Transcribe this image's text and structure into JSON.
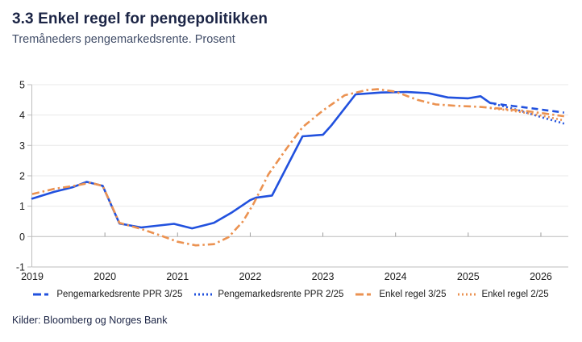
{
  "header": {
    "title": "3.3 Enkel regel for pengepolitikken",
    "subtitle": "Tremåneders pengemarkedsrente. Prosent"
  },
  "source": "Kilder: Bloomberg og Norges Bank",
  "colors": {
    "blue": "#2151DE",
    "orange": "#EB9251",
    "grid": "#E8E8E8",
    "zero_line": "#BDBDBD",
    "axis": "#BDBDBD",
    "tick": "#9E9E9E",
    "tick_label": "#1C1C1C",
    "title": "#1B2445",
    "subtitle": "#414D68"
  },
  "legend": {
    "items": [
      {
        "label": "Pengemarkedsrente PPR 3/25",
        "color": "blue",
        "style": "dashed"
      },
      {
        "label": "Pengemarkedsrente PPR 2/25",
        "color": "blue",
        "style": "dotted"
      },
      {
        "label": "Enkel regel 3/25",
        "color": "orange",
        "style": "dashed"
      },
      {
        "label": "Enkel regel 2/25",
        "color": "orange",
        "style": "dotted"
      }
    ]
  },
  "chart_data": {
    "type": "line",
    "title": "3.3 Enkel regel for pengepolitikken",
    "subtitle": "Tremåneders pengemarkedsrente. Prosent",
    "xlabel": "",
    "ylabel": "",
    "xlim": [
      2019,
      2026.4
    ],
    "ylim": [
      -1,
      5
    ],
    "xticks": [
      2019,
      2020,
      2021,
      2022,
      2023,
      2024,
      2025,
      2026
    ],
    "yticks": [
      5,
      4,
      3,
      2,
      1,
      0,
      -1
    ],
    "grid": true,
    "legend_position": "bottom",
    "series": [
      {
        "name": "Pengemarkedsrente PPR 3/25",
        "color": "#2151DE",
        "line_style": "solid-then-dashed",
        "dash_from": 2025.3,
        "points": [
          [
            2019.0,
            1.25
          ],
          [
            2019.3,
            1.47
          ],
          [
            2019.55,
            1.62
          ],
          [
            2019.75,
            1.8
          ],
          [
            2019.97,
            1.67
          ],
          [
            2020.2,
            0.43
          ],
          [
            2020.5,
            0.3
          ],
          [
            2020.95,
            0.42
          ],
          [
            2021.2,
            0.27
          ],
          [
            2021.5,
            0.45
          ],
          [
            2021.75,
            0.8
          ],
          [
            2022.0,
            1.2
          ],
          [
            2022.08,
            1.28
          ],
          [
            2022.3,
            1.35
          ],
          [
            2022.72,
            3.3
          ],
          [
            2023.0,
            3.35
          ],
          [
            2023.12,
            3.67
          ],
          [
            2023.45,
            4.68
          ],
          [
            2023.8,
            4.74
          ],
          [
            2024.15,
            4.76
          ],
          [
            2024.45,
            4.72
          ],
          [
            2024.72,
            4.58
          ],
          [
            2025.0,
            4.55
          ],
          [
            2025.17,
            4.62
          ],
          [
            2025.3,
            4.4
          ],
          [
            2025.5,
            4.33
          ],
          [
            2025.75,
            4.26
          ],
          [
            2026.0,
            4.18
          ],
          [
            2026.32,
            4.08
          ]
        ]
      },
      {
        "name": "Pengemarkedsrente PPR 2/25",
        "color": "#2151DE",
        "line_style": "dotted",
        "points": [
          [
            2025.3,
            4.4
          ],
          [
            2025.55,
            4.25
          ],
          [
            2025.8,
            4.08
          ],
          [
            2026.05,
            3.9
          ],
          [
            2026.32,
            3.72
          ]
        ]
      },
      {
        "name": "Enkel regel 3/25",
        "color": "#EB9251",
        "line_style": "dash-dot",
        "points": [
          [
            2019.0,
            1.4
          ],
          [
            2019.3,
            1.57
          ],
          [
            2019.6,
            1.68
          ],
          [
            2019.8,
            1.77
          ],
          [
            2019.97,
            1.67
          ],
          [
            2020.2,
            0.45
          ],
          [
            2020.5,
            0.25
          ],
          [
            2020.75,
            0.05
          ],
          [
            2021.0,
            -0.17
          ],
          [
            2021.25,
            -0.29
          ],
          [
            2021.5,
            -0.25
          ],
          [
            2021.7,
            -0.02
          ],
          [
            2021.9,
            0.5
          ],
          [
            2022.05,
            1.1
          ],
          [
            2022.25,
            2.05
          ],
          [
            2022.5,
            2.9
          ],
          [
            2022.72,
            3.6
          ],
          [
            2023.0,
            4.15
          ],
          [
            2023.3,
            4.65
          ],
          [
            2023.6,
            4.82
          ],
          [
            2023.75,
            4.85
          ],
          [
            2024.0,
            4.77
          ],
          [
            2024.3,
            4.5
          ],
          [
            2024.55,
            4.35
          ],
          [
            2024.85,
            4.3
          ],
          [
            2025.15,
            4.27
          ],
          [
            2025.5,
            4.2
          ],
          [
            2025.8,
            4.13
          ],
          [
            2026.05,
            4.05
          ],
          [
            2026.32,
            3.96
          ]
        ]
      },
      {
        "name": "Enkel regel 2/25",
        "color": "#EB9251",
        "line_style": "dotted",
        "points": [
          [
            2025.3,
            4.23
          ],
          [
            2025.55,
            4.16
          ],
          [
            2025.8,
            4.07
          ],
          [
            2026.05,
            3.96
          ],
          [
            2026.32,
            3.82
          ]
        ]
      }
    ]
  }
}
